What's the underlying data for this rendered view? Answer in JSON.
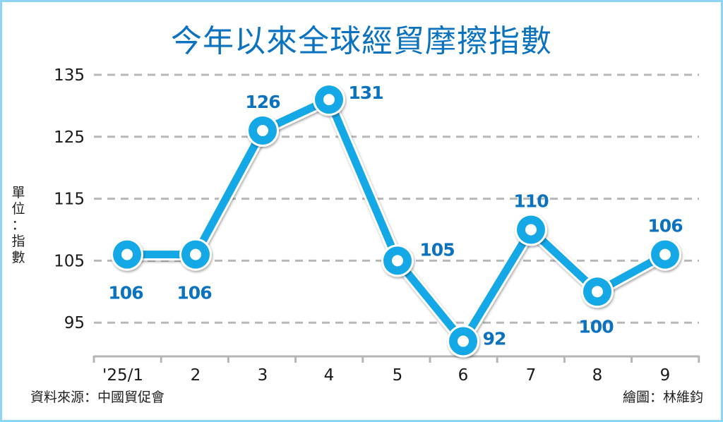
{
  "title": "今年以來全球經貿摩擦指數",
  "unit_label": [
    "單",
    "位",
    "：",
    "指",
    "數"
  ],
  "source": "資料來源：中國貿促會",
  "credit": "繪圖：林維鈞",
  "colors": {
    "line": "#14a8e6",
    "label": "#0b72c0",
    "frame": "#8fd4f5",
    "grid": "#b8b8b8"
  },
  "chart_data": {
    "type": "line",
    "title": "今年以來全球經貿摩擦指數",
    "xlabel": "",
    "ylabel": "單位：指數",
    "categories": [
      "'25/1",
      "2",
      "3",
      "4",
      "5",
      "6",
      "7",
      "8",
      "9"
    ],
    "series": [
      {
        "name": "全球經貿摩擦指數",
        "values": [
          106,
          106,
          126,
          131,
          105,
          92,
          110,
          100,
          106
        ]
      }
    ],
    "yticks": [
      135,
      125,
      115,
      105,
      95
    ],
    "ylim": [
      90,
      135
    ],
    "grid": "horizontal dashed",
    "legend": "none",
    "data_labels": [
      {
        "text": "106",
        "pos": "below"
      },
      {
        "text": "106",
        "pos": "below"
      },
      {
        "text": "126",
        "pos": "above"
      },
      {
        "text": "131",
        "pos": "right"
      },
      {
        "text": "105",
        "pos": "upper-right"
      },
      {
        "text": "92",
        "pos": "right"
      },
      {
        "text": "110",
        "pos": "above"
      },
      {
        "text": "100",
        "pos": "below"
      },
      {
        "text": "106",
        "pos": "above"
      }
    ]
  }
}
